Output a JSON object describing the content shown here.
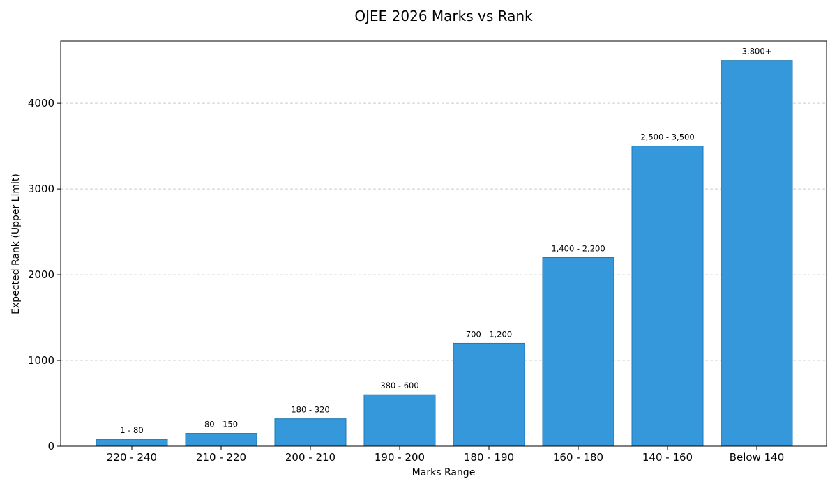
{
  "chart_data": {
    "type": "bar",
    "title": "OJEE 2026 Marks vs Rank",
    "xlabel": "Marks Range",
    "ylabel": "Expected Rank (Upper Limit)",
    "categories": [
      "220 - 240",
      "210 - 220",
      "200 - 210",
      "190 - 200",
      "180 - 190",
      "160 - 180",
      "140 - 160",
      "Below 140"
    ],
    "values": [
      80,
      150,
      320,
      600,
      1200,
      2200,
      3500,
      4500
    ],
    "data_labels": [
      "1 - 80",
      "80 - 150",
      "180 - 320",
      "380 - 600",
      "700 - 1,200",
      "1,400 - 2,200",
      "2,500 - 3,500",
      "3,800+"
    ],
    "ylim": [
      0,
      4725
    ],
    "yticks": [
      0,
      1000,
      2000,
      3000,
      4000
    ],
    "grid": "horizontal dashed",
    "bar_color": "#3498db",
    "bar_edge_color": "#1f78b4"
  }
}
